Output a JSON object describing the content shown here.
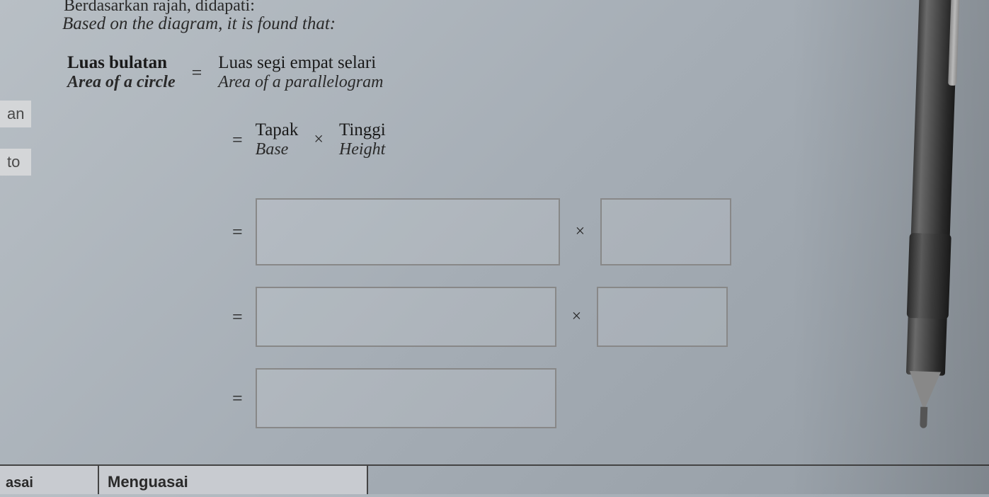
{
  "intro": {
    "partial_my": "Berdasarkan rajah, didapati:",
    "based_on_en": "Based on the diagram, it is found that:"
  },
  "formula": {
    "lhs_my": "Luas bulatan",
    "lhs_en": "Area of a circle",
    "equals": "=",
    "rhs_my": "Luas segi empat selari",
    "rhs_en": "Area of a parallelogram"
  },
  "side": {
    "an": "an",
    "to": "to"
  },
  "step2": {
    "equals": "=",
    "tapak_my": "Tapak",
    "tapak_en": "Base",
    "times": "×",
    "tinggi_my": "Tinggi",
    "tinggi_en": "Height"
  },
  "boxes": {
    "equals": "=",
    "times": "×"
  },
  "bottom": {
    "asai": "asai",
    "menguasai": "Menguasai"
  },
  "styling": {
    "background_gradient": [
      "#b8bfc5",
      "#a5adb5",
      "#959da5"
    ],
    "text_color": "#2a2a2a",
    "bold_text_color": "#1a1a1a",
    "box_border_color": "#888",
    "bottom_bar_border": "#444",
    "bottom_cell_bg": "#c8cbd0",
    "font_main": "Georgia, serif",
    "font_secondary": "Arial, sans-serif",
    "font_size_main": 25,
    "font_size_italic": 24,
    "box_large_w": 430,
    "box_large_h": 95,
    "box_small_w": 185,
    "box_small_h": 95
  }
}
